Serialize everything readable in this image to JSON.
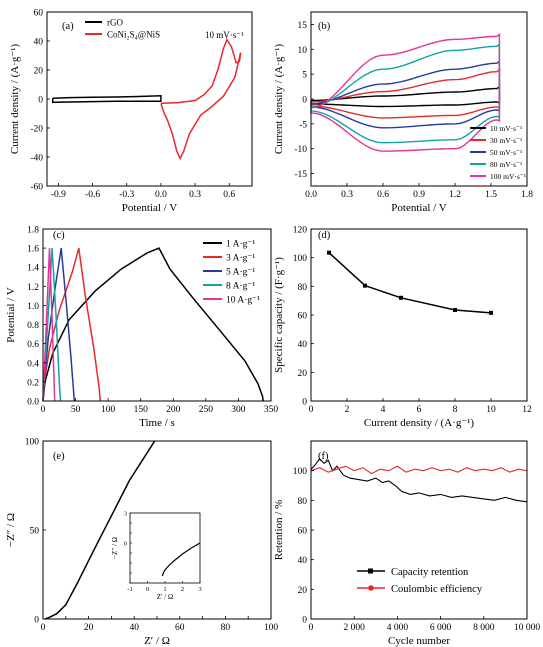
{
  "chart_data": [
    {
      "id": "a",
      "type": "line",
      "panel_label": "(a)",
      "xlabel": "Potential / V",
      "ylabel": "Current density / (A·g⁻¹)",
      "xlim": [
        -1.0,
        0.8
      ],
      "ylim": [
        -60,
        60
      ],
      "xticks": [
        -0.9,
        -0.6,
        -0.3,
        0.0,
        0.3,
        0.6
      ],
      "xtick_labels": [
        "-0.9",
        "-0.6",
        "-0.3",
        "0.0",
        "0.3",
        "0.6"
      ],
      "yticks": [
        -60,
        -40,
        -20,
        0,
        20,
        40,
        60
      ],
      "ytick_labels": [
        "-60",
        "-40",
        "-20",
        "0",
        "20",
        "40",
        "60"
      ],
      "annotation": "10 mV·s⁻¹",
      "legend": [
        {
          "name": "rGO",
          "color": "#000000"
        },
        {
          "name": "CoNi₂S₄@NiS",
          "color": "#e8292b"
        }
      ],
      "series": [
        {
          "name": "rGO",
          "color": "#000000",
          "x": [
            -0.95,
            -0.8,
            -0.6,
            -0.4,
            -0.2,
            0.0,
            0.0,
            -0.2,
            -0.4,
            -0.6,
            -0.8,
            -0.95,
            -0.95
          ],
          "y": [
            0.5,
            1.0,
            1.2,
            1.4,
            1.7,
            2.2,
            -1.6,
            -1.5,
            -1.6,
            -1.8,
            -2.1,
            -2.3,
            0.5
          ]
        },
        {
          "name": "CoNi₂S₄@NiS",
          "color": "#e8292b",
          "x": [
            0.0,
            0.15,
            0.3,
            0.38,
            0.45,
            0.5,
            0.55,
            0.58,
            0.62,
            0.66,
            0.69,
            0.7,
            0.65,
            0.55,
            0.45,
            0.35,
            0.25,
            0.2,
            0.17,
            0.14,
            0.1,
            0.06,
            0.03,
            0.0
          ],
          "y": [
            -3,
            -2.5,
            -1,
            3,
            9,
            20,
            35,
            41,
            36,
            25,
            26,
            32,
            15,
            2,
            -5,
            -11,
            -24,
            -36,
            -41,
            -36,
            -24,
            -15,
            -10,
            -3
          ]
        }
      ]
    },
    {
      "id": "b",
      "type": "line",
      "panel_label": "(b)",
      "xlabel": "Potential / V",
      "ylabel": "Current density / (A·g⁻¹)",
      "xlim": [
        0.0,
        1.8
      ],
      "ylim": [
        -17.5,
        17.5
      ],
      "xticks": [
        0.0,
        0.3,
        0.6,
        0.9,
        1.2,
        1.5,
        1.8
      ],
      "xtick_labels": [
        "0.0",
        "0.3",
        "0.6",
        "0.9",
        "1.2",
        "1.5",
        "1.8"
      ],
      "yticks": [
        -15,
        -10,
        -5,
        0,
        5,
        10,
        15
      ],
      "ytick_labels": [
        "-15",
        "-10",
        "-5",
        "0",
        "5",
        "10",
        "15"
      ],
      "legend": [
        {
          "name": "10 mV·s⁻¹",
          "color": "#000000"
        },
        {
          "name": "30 mV·s⁻¹",
          "color": "#e8292b"
        },
        {
          "name": "50 mV·s⁻¹",
          "color": "#2a3a9a"
        },
        {
          "name": "80 mV·s⁻¹",
          "color": "#13a2a8"
        },
        {
          "name": "100 mV·s⁻¹",
          "color": "#e0359a"
        }
      ],
      "series": [
        {
          "name": "10 mV·s⁻¹",
          "color": "#000000",
          "anodic_top": [
            -0.3,
            0.6,
            1.4,
            2.1
          ],
          "cathodic_bottom": [
            -0.6,
            -1.2,
            -1.5,
            -1.0
          ],
          "x_top": [
            0.0,
            0.6,
            1.2,
            1.55
          ],
          "x_bot": [
            1.55,
            1.2,
            0.6,
            0.0
          ]
        },
        {
          "name": "30 mV·s⁻¹",
          "color": "#e8292b",
          "anodic_top": [
            -0.6,
            1.5,
            3.9,
            5.5
          ],
          "cathodic_bottom": [
            -1.6,
            -3.3,
            -3.8,
            -1.4
          ],
          "x_top": [
            0.0,
            0.6,
            1.2,
            1.55
          ],
          "x_bot": [
            1.55,
            1.2,
            0.6,
            0.0
          ]
        },
        {
          "name": "50 mV·s⁻¹",
          "color": "#2a3a9a",
          "anodic_top": [
            -1.0,
            3.0,
            6.0,
            7.2
          ],
          "cathodic_bottom": [
            -2.2,
            -5.0,
            -5.8,
            -1.6
          ],
          "x_top": [
            0.0,
            0.6,
            1.2,
            1.55
          ],
          "x_bot": [
            1.55,
            1.2,
            0.6,
            0.0
          ]
        },
        {
          "name": "80 mV·s⁻¹",
          "color": "#13a2a8",
          "anodic_top": [
            -1.6,
            6.0,
            9.8,
            10.6
          ],
          "cathodic_bottom": [
            -3.5,
            -8.2,
            -8.8,
            -2.4
          ],
          "x_top": [
            0.0,
            0.6,
            1.2,
            1.55
          ],
          "x_bot": [
            1.55,
            1.2,
            0.6,
            0.0
          ]
        },
        {
          "name": "100 mV·s⁻¹",
          "color": "#e0359a",
          "anodic_top": [
            -1.8,
            8.8,
            12.0,
            12.6
          ],
          "cathodic_bottom": [
            -4.2,
            -10.0,
            -10.5,
            -2.8
          ],
          "x_top": [
            0.0,
            0.6,
            1.2,
            1.55
          ],
          "x_bot": [
            1.55,
            1.2,
            0.6,
            0.0
          ]
        }
      ]
    },
    {
      "id": "c",
      "type": "line",
      "panel_label": "(c)",
      "xlabel": "Time / s",
      "ylabel": "Potential / V",
      "xlim": [
        0,
        350
      ],
      "ylim": [
        0.0,
        1.8
      ],
      "xticks": [
        0,
        50,
        100,
        150,
        200,
        250,
        300,
        350
      ],
      "xtick_labels": [
        "0",
        "50",
        "100",
        "150",
        "200",
        "250",
        "300",
        "350"
      ],
      "yticks": [
        0.0,
        0.2,
        0.4,
        0.6,
        0.8,
        1.0,
        1.2,
        1.4,
        1.6,
        1.8
      ],
      "ytick_labels": [
        "0.0",
        "0.2",
        "0.4",
        "0.6",
        "0.8",
        "1.0",
        "1.2",
        "1.4",
        "1.6",
        "1.8"
      ],
      "legend": [
        {
          "name": "1 A·g⁻¹",
          "color": "#000000"
        },
        {
          "name": "3 A·g⁻¹",
          "color": "#e8292b"
        },
        {
          "name": "5 A·g⁻¹",
          "color": "#2a3a9a"
        },
        {
          "name": "8 A·g⁻¹",
          "color": "#13a2a8"
        },
        {
          "name": "10 A·g⁻¹",
          "color": "#e0359a"
        }
      ],
      "series": [
        {
          "name": "1 A·g⁻¹",
          "color": "#000000",
          "x": [
            0,
            3,
            15,
            40,
            80,
            120,
            160,
            178,
            195,
            230,
            270,
            310,
            330,
            337,
            338
          ],
          "y": [
            0.0,
            0.2,
            0.5,
            0.85,
            1.15,
            1.38,
            1.55,
            1.6,
            1.38,
            1.08,
            0.75,
            0.42,
            0.18,
            0.05,
            0.0
          ]
        },
        {
          "name": "3 A·g⁻¹",
          "color": "#e8292b",
          "x": [
            0,
            2,
            10,
            25,
            45,
            55,
            65,
            78,
            86,
            88
          ],
          "y": [
            0.0,
            0.2,
            0.55,
            0.95,
            1.35,
            1.6,
            1.1,
            0.55,
            0.15,
            0.0
          ]
        },
        {
          "name": "5 A·g⁻¹",
          "color": "#2a3a9a",
          "x": [
            0,
            2,
            8,
            18,
            28,
            36,
            43,
            47,
            48
          ],
          "y": [
            0.0,
            0.2,
            0.65,
            1.15,
            1.6,
            1.0,
            0.45,
            0.1,
            0.0
          ]
        },
        {
          "name": "8 A·g⁻¹",
          "color": "#13a2a8",
          "x": [
            0,
            2,
            8,
            14,
            20,
            24,
            26,
            27
          ],
          "y": [
            0.0,
            0.25,
            0.9,
            1.6,
            0.9,
            0.35,
            0.08,
            0.0
          ]
        },
        {
          "name": "10 A·g⁻¹",
          "color": "#e0359a",
          "x": [
            0,
            2,
            6,
            10,
            14,
            17,
            18
          ],
          "y": [
            0.0,
            0.3,
            0.95,
            1.6,
            0.85,
            0.2,
            0.0
          ]
        }
      ]
    },
    {
      "id": "d",
      "type": "line",
      "panel_label": "(d)",
      "xlabel": "Current density / (A·g⁻¹)",
      "ylabel": "Specific capacity / (F·g⁻¹)",
      "xlim": [
        0,
        12
      ],
      "ylim": [
        0,
        120
      ],
      "xticks": [
        0,
        2,
        4,
        6,
        8,
        10,
        12
      ],
      "xtick_labels": [
        "0",
        "2",
        "4",
        "6",
        "8",
        "10",
        "12"
      ],
      "yticks": [
        0,
        20,
        40,
        60,
        80,
        100,
        120
      ],
      "ytick_labels": [
        "0",
        "20",
        "40",
        "60",
        "80",
        "100",
        "120"
      ],
      "series": [
        {
          "color": "#000000",
          "x": [
            1,
            3,
            5,
            8,
            10
          ],
          "y": [
            103.5,
            80.5,
            72,
            63.5,
            61.5
          ]
        }
      ]
    },
    {
      "id": "e",
      "type": "line",
      "panel_label": "(e)",
      "xlabel": "Z′ / Ω",
      "ylabel": "−Z″ / Ω",
      "xlim": [
        0,
        100
      ],
      "ylim": [
        0,
        100
      ],
      "xticks": [
        0,
        10,
        20,
        30,
        40,
        50,
        60,
        70,
        80,
        90,
        100
      ],
      "xtick_labels": [
        "0",
        "",
        "20",
        "",
        "40",
        "",
        "60",
        "",
        "80",
        "",
        "100"
      ],
      "yticks": [
        0,
        50,
        100
      ],
      "ytick_labels": [
        "0",
        "50",
        "100"
      ],
      "series": [
        {
          "color": "#000000",
          "x": [
            1,
            3,
            6,
            10,
            15,
            22,
            30,
            38,
            45,
            49
          ],
          "y": [
            0,
            1,
            3,
            8,
            20,
            38,
            58,
            78,
            92,
            100
          ]
        }
      ],
      "inset": {
        "xlabel": "Z′ / Ω",
        "ylabel": "−Z″ / Ω",
        "xlim": [
          -1,
          3
        ],
        "ylim": [
          -4,
          3
        ],
        "xticks": [
          -1,
          0,
          1,
          2,
          3
        ],
        "xtick_labels": [
          "-1",
          "0",
          "1",
          "2",
          "3"
        ],
        "yticks": [
          -4,
          -3,
          -2,
          -1,
          0,
          1,
          2,
          3
        ],
        "ytick_labels": [
          "",
          "",
          "",
          "",
          "0",
          "",
          "",
          "3"
        ],
        "x": [
          0.85,
          0.9,
          1.0,
          1.2,
          1.5,
          2.0,
          2.5,
          3.0
        ],
        "y": [
          -3.3,
          -3.0,
          -2.7,
          -2.3,
          -1.8,
          -1.1,
          -0.5,
          0.0
        ]
      }
    },
    {
      "id": "f",
      "type": "line",
      "panel_label": "(f)",
      "xlabel": "Cycle number",
      "ylabel": "Retention / %",
      "xlim": [
        0,
        10000
      ],
      "ylim": [
        0,
        120
      ],
      "xticks": [
        0,
        2000,
        4000,
        6000,
        8000,
        10000
      ],
      "xtick_labels": [
        "0",
        "2 000",
        "4 000",
        "6 000",
        "8 000",
        "10 000"
      ],
      "yticks": [
        0,
        20,
        40,
        60,
        80,
        100
      ],
      "ytick_labels": [
        "0",
        "20",
        "40",
        "60",
        "80",
        "100"
      ],
      "legend": [
        {
          "name": "Capacity retention",
          "color": "#000000"
        },
        {
          "name": "Coulombic efficiency",
          "color": "#e8292b"
        }
      ],
      "series": [
        {
          "name": "Capacity retention",
          "color": "#000000",
          "x": [
            0,
            200,
            400,
            600,
            800,
            1000,
            1200,
            1500,
            1800,
            2200,
            2600,
            3000,
            3300,
            3600,
            3900,
            4200,
            4600,
            5000,
            5500,
            6000,
            6500,
            7000,
            7500,
            8000,
            8500,
            9000,
            9500,
            10000
          ],
          "y": [
            101,
            104,
            108,
            105,
            107,
            100,
            103,
            97,
            95,
            94,
            93,
            95,
            92,
            93,
            90,
            86,
            84,
            85,
            83,
            84,
            82,
            83,
            82,
            81,
            80,
            82,
            80,
            79
          ]
        },
        {
          "name": "Coulombic efficiency",
          "color": "#e8292b",
          "x": [
            0,
            400,
            800,
            1200,
            1600,
            2000,
            2400,
            2800,
            3200,
            3600,
            4000,
            4400,
            4800,
            5200,
            5600,
            6000,
            6400,
            6800,
            7200,
            7600,
            8000,
            8400,
            8800,
            9200,
            9600,
            10000
          ],
          "y": [
            100,
            102,
            99,
            101,
            103,
            100,
            102,
            98,
            101,
            100,
            103,
            99,
            101,
            100,
            102,
            100,
            101,
            99,
            102,
            100,
            101,
            100,
            102,
            99,
            101,
            100
          ]
        }
      ]
    }
  ]
}
